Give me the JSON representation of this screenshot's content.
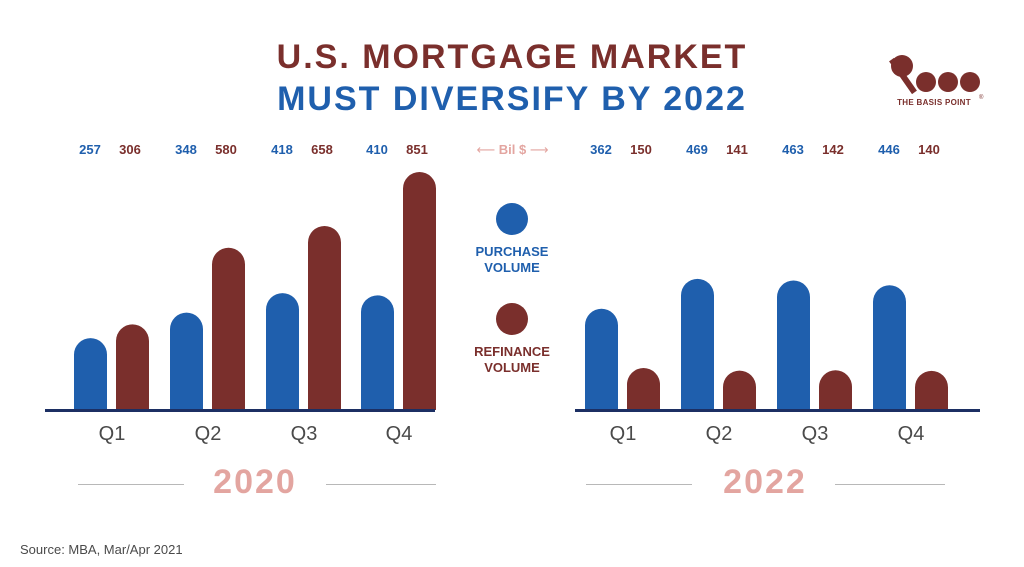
{
  "title": {
    "line1": "U.S. MORTGAGE MARKET",
    "line2": "MUST DIVERSIFY BY 2022"
  },
  "logo": {
    "icon": "percent-logo-icon",
    "text": "THE BASIS POINT",
    "reg": "®",
    "color": "#7a2f2c"
  },
  "unit_label": "Bil $",
  "legend": {
    "purchase": "PURCHASE\nVOLUME",
    "refinance": "REFINANCE\nVOLUME"
  },
  "source": "Source: MBA, Mar/Apr 2021",
  "colors": {
    "purchase": "#1f5fad",
    "refinance": "#7a2f2c",
    "year": "#e3a5a0",
    "baseline": "#1c2f63"
  },
  "chart_data": [
    {
      "type": "bar",
      "title": "2020",
      "categories": [
        "Q1",
        "Q2",
        "Q3",
        "Q4"
      ],
      "series": [
        {
          "name": "PURCHASE VOLUME",
          "values": [
            257,
            348,
            418,
            410
          ]
        },
        {
          "name": "REFINANCE VOLUME",
          "values": [
            306,
            580,
            658,
            851
          ]
        }
      ],
      "ylabel": "Bil $",
      "ylim": [
        0,
        851
      ]
    },
    {
      "type": "bar",
      "title": "2022",
      "categories": [
        "Q1",
        "Q2",
        "Q3",
        "Q4"
      ],
      "series": [
        {
          "name": "PURCHASE VOLUME",
          "values": [
            362,
            469,
            463,
            446
          ]
        },
        {
          "name": "REFINANCE VOLUME",
          "values": [
            150,
            141,
            142,
            140
          ]
        }
      ],
      "ylabel": "Bil $",
      "ylim": [
        0,
        851
      ]
    }
  ]
}
